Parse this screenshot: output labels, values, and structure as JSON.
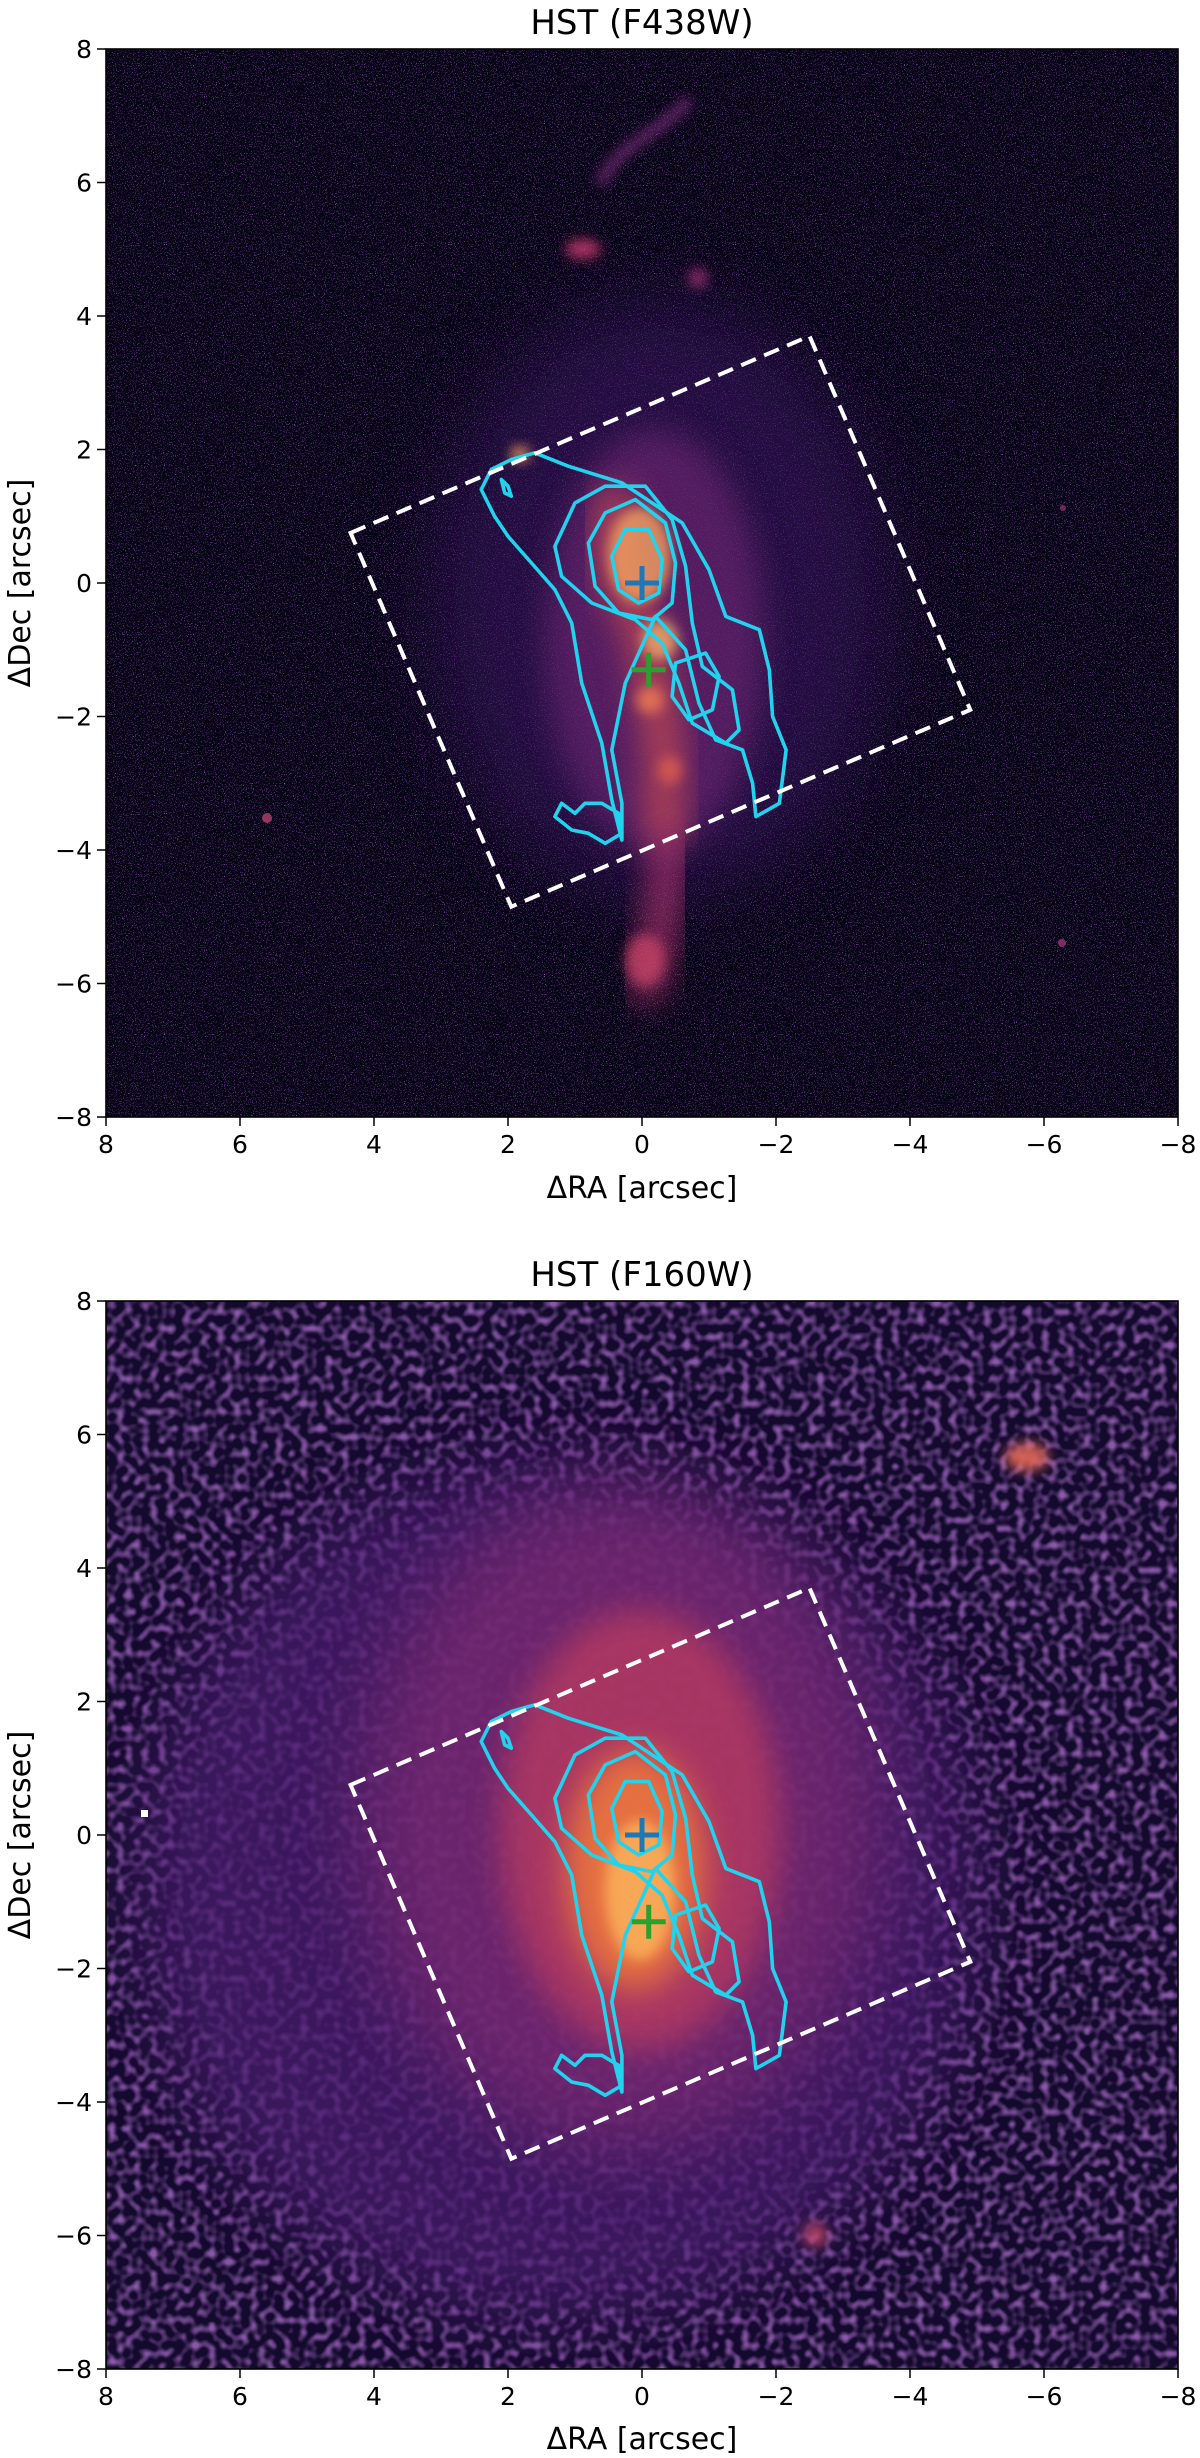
{
  "figure": {
    "panels": [
      {
        "id": "f438w",
        "title": "HST (F438W)",
        "xlabel": "ΔRA [arcsec]",
        "ylabel": "ΔDec [arcsec]",
        "xlim": [
          8,
          -8
        ],
        "ylim": [
          -8,
          8
        ],
        "xticks": [
          "8",
          "6",
          "4",
          "2",
          "0",
          "−2",
          "−4",
          "−6",
          "−8"
        ],
        "yticks": [
          "8",
          "6",
          "4",
          "2",
          "0",
          "−2",
          "−4",
          "−6",
          "−8"
        ],
        "colormap": "magma",
        "background_color": "#050314",
        "contour_color": "#22d3ee",
        "box_color": "#ffffff",
        "marker_colors": [
          "#1f77b4",
          "#2ca02c"
        ]
      },
      {
        "id": "f160w",
        "title": "HST (F160W)",
        "xlabel": "ΔRA [arcsec]",
        "ylabel": "ΔDec [arcsec]",
        "xlim": [
          8,
          -8
        ],
        "ylim": [
          -8,
          8
        ],
        "xticks": [
          "8",
          "6",
          "4",
          "2",
          "0",
          "−2",
          "−4",
          "−6",
          "−8"
        ],
        "yticks": [
          "8",
          "6",
          "4",
          "2",
          "0",
          "−2",
          "−4",
          "−6",
          "−8"
        ],
        "colormap": "magma",
        "background_color": "#140a2e",
        "contour_color": "#22d3ee",
        "box_color": "#ffffff",
        "marker_colors": [
          "#1f77b4",
          "#2ca02c"
        ]
      }
    ],
    "overlay": {
      "box_corners": [
        [
          4.35,
          0.75
        ],
        [
          -2.5,
          3.7
        ],
        [
          -4.9,
          -1.9
        ],
        [
          1.95,
          -4.85
        ]
      ],
      "markers": [
        {
          "ra": 0.0,
          "dec": 0.0,
          "color_index": 0
        },
        {
          "ra": -0.1,
          "dec": -1.3,
          "color_index": 1
        }
      ],
      "contours": [
        [
          [
            2.4,
            1.4
          ],
          [
            2.25,
            1.7
          ],
          [
            1.95,
            1.85
          ],
          [
            1.6,
            1.95
          ],
          [
            1.1,
            1.75
          ],
          [
            0.3,
            1.5
          ],
          [
            -0.6,
            0.9
          ],
          [
            -1.0,
            0.2
          ],
          [
            -1.25,
            -0.5
          ],
          [
            -1.75,
            -0.7
          ],
          [
            -1.9,
            -1.3
          ],
          [
            -1.95,
            -2.0
          ],
          [
            -2.15,
            -2.5
          ],
          [
            -2.05,
            -3.3
          ],
          [
            -1.7,
            -3.5
          ],
          [
            -1.65,
            -3.0
          ],
          [
            -1.5,
            -2.5
          ],
          [
            -1.1,
            -2.35
          ],
          [
            -0.85,
            -1.8
          ],
          [
            -0.65,
            -1.0
          ],
          [
            -0.2,
            -0.5
          ],
          [
            0.25,
            -1.5
          ],
          [
            0.45,
            -2.5
          ],
          [
            0.3,
            -3.3
          ],
          [
            0.3,
            -3.85
          ],
          [
            0.45,
            -3.25
          ],
          [
            0.6,
            -2.4
          ],
          [
            0.9,
            -1.5
          ],
          [
            1.05,
            -0.6
          ],
          [
            1.3,
            -0.1
          ],
          [
            1.65,
            0.3
          ],
          [
            2.0,
            0.7
          ],
          [
            2.2,
            1.0
          ],
          [
            2.4,
            1.4
          ]
        ],
        [
          [
            1.3,
            0.55
          ],
          [
            1.0,
            1.2
          ],
          [
            0.55,
            1.45
          ],
          [
            -0.05,
            1.45
          ],
          [
            -0.45,
            0.95
          ],
          [
            -0.65,
            0.25
          ],
          [
            -0.75,
            -0.6
          ],
          [
            -0.9,
            -1.25
          ],
          [
            -1.35,
            -1.6
          ],
          [
            -1.45,
            -2.2
          ],
          [
            -1.25,
            -2.4
          ],
          [
            -0.75,
            -2.1
          ],
          [
            -0.55,
            -1.5
          ],
          [
            -0.3,
            -0.9
          ],
          [
            0.1,
            -0.55
          ],
          [
            0.75,
            -0.3
          ],
          [
            1.2,
            0.1
          ],
          [
            1.3,
            0.55
          ]
        ],
        [
          [
            0.8,
            0.6
          ],
          [
            0.55,
            1.05
          ],
          [
            0.1,
            1.25
          ],
          [
            -0.35,
            0.9
          ],
          [
            -0.5,
            0.3
          ],
          [
            -0.45,
            -0.3
          ],
          [
            -0.15,
            -0.55
          ],
          [
            0.35,
            -0.45
          ],
          [
            0.7,
            -0.05
          ],
          [
            0.8,
            0.6
          ]
        ],
        [
          [
            0.45,
            0.4
          ],
          [
            0.25,
            0.8
          ],
          [
            -0.1,
            0.8
          ],
          [
            -0.3,
            0.35
          ],
          [
            -0.25,
            -0.15
          ],
          [
            0.05,
            -0.3
          ],
          [
            0.35,
            -0.1
          ],
          [
            0.45,
            0.4
          ]
        ],
        [
          [
            -0.5,
            -1.2
          ],
          [
            -0.95,
            -1.05
          ],
          [
            -1.15,
            -1.4
          ],
          [
            -1.05,
            -1.9
          ],
          [
            -0.7,
            -2.05
          ],
          [
            -0.45,
            -1.7
          ],
          [
            -0.5,
            -1.2
          ]
        ],
        [
          [
            0.6,
            -3.3
          ],
          [
            0.35,
            -3.45
          ],
          [
            0.3,
            -3.75
          ],
          [
            0.55,
            -3.9
          ],
          [
            0.8,
            -3.75
          ],
          [
            1.05,
            -3.7
          ],
          [
            1.3,
            -3.5
          ],
          [
            1.2,
            -3.3
          ],
          [
            1.0,
            -3.45
          ],
          [
            0.85,
            -3.3
          ],
          [
            0.6,
            -3.3
          ]
        ],
        [
          [
            2.0,
            1.45
          ],
          [
            2.1,
            1.55
          ],
          [
            2.05,
            1.35
          ],
          [
            1.95,
            1.3
          ],
          [
            2.0,
            1.45
          ]
        ]
      ]
    }
  }
}
